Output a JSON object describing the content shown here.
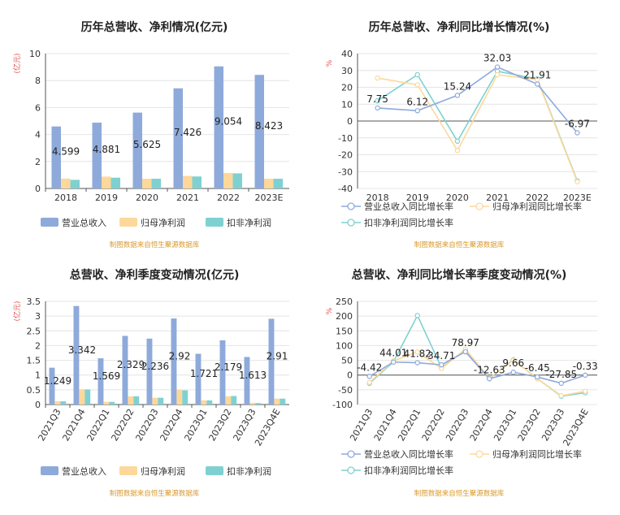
{
  "colors": {
    "revenue": "#8eaadb",
    "parent_profit": "#fdd89a",
    "deducted_profit": "#7fd1d1",
    "source_text": "#d99a2b",
    "unit_text": "#e05050",
    "axis": "#555555",
    "grid": "#e4e4e4"
  },
  "chart_data": [
    {
      "id": "annual-amounts",
      "type": "bar",
      "title": "历年总营收、净利情况(亿元)",
      "ylabel": "(亿元)",
      "categories": [
        "2018",
        "2019",
        "2020",
        "2021",
        "2022",
        "2023E"
      ],
      "ylim": [
        0,
        10
      ],
      "yticks": [
        0,
        2,
        4,
        6,
        8,
        10
      ],
      "series": [
        {
          "name": "营业总收入",
          "values": [
            4.599,
            4.881,
            5.625,
            7.426,
            9.054,
            8.423
          ],
          "labels": [
            "4.599",
            "4.881",
            "5.625",
            "7.426",
            "9.054",
            "8.423"
          ]
        },
        {
          "name": "归母净利润",
          "values": [
            0.73,
            0.88,
            0.72,
            0.93,
            1.15,
            0.72
          ]
        },
        {
          "name": "扣非净利润",
          "values": [
            0.64,
            0.8,
            0.72,
            0.89,
            1.12,
            0.72
          ]
        }
      ],
      "grid": true,
      "legend": "bottom",
      "source": "制图数据来自恒生聚源数据库"
    },
    {
      "id": "annual-growth",
      "type": "line",
      "title": "历年总营收、净利同比增长情况(%)",
      "ylabel": "%",
      "categories": [
        "2018",
        "2019",
        "2020",
        "2021",
        "2022",
        "2023E"
      ],
      "ylim": [
        -40,
        40
      ],
      "yticks": [
        -40,
        -30,
        -20,
        -10,
        0,
        10,
        20,
        30,
        40
      ],
      "series": [
        {
          "name": "营业总收入同比增长率",
          "values": [
            7.75,
            6.12,
            15.24,
            32.03,
            21.91,
            -6.97
          ],
          "labels": [
            "7.75",
            "6.12",
            "15.24",
            "32.03",
            "21.91",
            "-6.97"
          ]
        },
        {
          "name": "归母净利润同比增长率",
          "values": [
            25.5,
            21.5,
            -17.5,
            27.5,
            24.5,
            -36.0
          ]
        },
        {
          "name": "扣非净利润同比增长率",
          "values": [
            12.0,
            27.5,
            -12.0,
            29.5,
            25.0,
            -35.5
          ]
        }
      ],
      "grid": true,
      "legend": "bottom",
      "source": "制图数据来自恒生聚源数据库"
    },
    {
      "id": "quarterly-amounts",
      "type": "bar",
      "title": "总营收、净利季度变动情况(亿元)",
      "ylabel": "(亿元)",
      "categories": [
        "2021Q3",
        "2021Q4",
        "2022Q1",
        "2022Q2",
        "2022Q3",
        "2022Q4",
        "2023Q1",
        "2023Q2",
        "2023Q3",
        "2023Q4E"
      ],
      "ylim": [
        0,
        3.5
      ],
      "yticks": [
        0,
        0.5,
        1,
        1.5,
        2,
        2.5,
        3,
        3.5
      ],
      "series": [
        {
          "name": "营业总收入",
          "values": [
            1.249,
            3.342,
            1.569,
            2.329,
            2.236,
            2.92,
            1.721,
            2.179,
            1.613,
            2.91
          ],
          "labels": [
            "1.249",
            "3.342",
            "1.569",
            "2.329",
            "2.236",
            "2.92",
            "1.721",
            "2.179",
            "1.613",
            "2.91"
          ]
        },
        {
          "name": "归母净利润",
          "values": [
            0.11,
            0.52,
            0.09,
            0.28,
            0.23,
            0.5,
            0.14,
            0.28,
            0.06,
            0.2
          ]
        },
        {
          "name": "扣非净利润",
          "values": [
            0.11,
            0.51,
            0.09,
            0.28,
            0.23,
            0.48,
            0.14,
            0.29,
            0.05,
            0.2
          ]
        }
      ],
      "grid": true,
      "legend": "bottom",
      "source": "制图数据来自恒生聚源数据库"
    },
    {
      "id": "quarterly-growth",
      "type": "line",
      "title": "总营收、净利同比增长率季度变动情况(%)",
      "ylabel": "%",
      "categories": [
        "2021Q3",
        "2021Q4",
        "2022Q1",
        "2022Q2",
        "2022Q3",
        "2022Q4",
        "2023Q1",
        "2023Q2",
        "2023Q3",
        "2023Q4E"
      ],
      "ylim": [
        -100,
        250
      ],
      "yticks": [
        -100,
        -50,
        0,
        50,
        100,
        150,
        200,
        250
      ],
      "series": [
        {
          "name": "营业总收入同比增长率",
          "values": [
            -4.42,
            44.01,
            41.82,
            34.71,
            78.97,
            -12.63,
            9.66,
            -6.45,
            -27.85,
            -0.33
          ],
          "labels": [
            "-4.42",
            "44.01",
            "41.82",
            "34.71",
            "78.97",
            "-12.63",
            "9.66",
            "-6.45",
            "-27.85",
            "-0.33"
          ]
        },
        {
          "name": "归母净利润同比增长率",
          "values": [
            -25,
            48,
            78,
            22,
            88,
            -10,
            50,
            -12,
            -70,
            -55
          ]
        },
        {
          "name": "扣非净利润同比增长率",
          "values": [
            -28,
            45,
            202,
            25,
            85,
            -12,
            52,
            -12,
            -72,
            -60
          ]
        }
      ],
      "grid": true,
      "legend": "bottom",
      "source": "制图数据来自恒生聚源数据库"
    }
  ]
}
